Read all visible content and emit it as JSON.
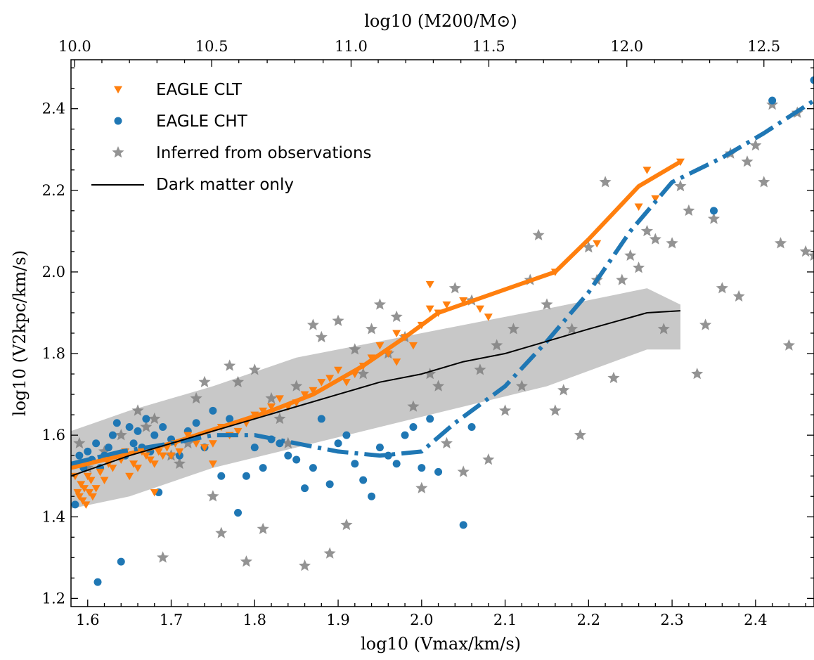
{
  "chart_data": {
    "type": "scatter",
    "title": "",
    "xlabel": "log10 (Vmax/km/s)",
    "ylabel": "log10 (V2kpc/km/s)",
    "top_xlabel": "log10 (M200/M⊙)",
    "xlim": [
      1.58,
      2.47
    ],
    "ylim": [
      1.18,
      2.52
    ],
    "x_ticks": [
      "1.6",
      "1.7",
      "1.8",
      "1.9",
      "2.0",
      "2.1",
      "2.2",
      "2.3",
      "2.4"
    ],
    "y_ticks": [
      "1.2",
      "1.4",
      "1.6",
      "1.8",
      "2.0",
      "2.2",
      "2.4"
    ],
    "top_axis": {
      "ticks": [
        "10.0",
        "10.5",
        "11.0",
        "11.5",
        "12.0",
        "12.5"
      ],
      "tick_positions_vmax": [
        1.5845,
        1.7485,
        1.9155,
        2.0805,
        2.2458,
        2.41
      ],
      "minor_tick_positions_vmax": [
        1.617,
        1.65,
        1.683,
        1.716,
        1.781,
        1.815,
        1.848,
        1.882,
        1.948,
        1.981,
        2.014,
        2.047,
        2.113,
        2.146,
        2.179,
        2.212,
        2.279,
        2.312,
        2.345,
        2.378,
        2.443
      ]
    },
    "grid": false,
    "legend_position": "top-left",
    "colors": {
      "clt": "#ff7f0e",
      "cht": "#1f77b4",
      "obs": "#808080",
      "dmo": "#000000",
      "band": "#c8c8c8"
    },
    "legend": [
      {
        "label": "EAGLE CLT",
        "marker": "triangle-down",
        "color": "#ff7f0e"
      },
      {
        "label": "EAGLE CHT",
        "marker": "circle",
        "color": "#1f77b4"
      },
      {
        "label": "Inferred from observations",
        "marker": "star",
        "color": "#808080"
      },
      {
        "label": "Dark matter only",
        "marker": "line",
        "color": "#000000"
      }
    ],
    "series": [
      {
        "name": "EAGLE CLT",
        "kind": "scatter",
        "marker": "triangle-down",
        "color": "#ff7f0e",
        "points": [
          [
            1.585,
            1.5
          ],
          [
            1.588,
            1.46
          ],
          [
            1.59,
            1.45
          ],
          [
            1.592,
            1.48
          ],
          [
            1.594,
            1.44
          ],
          [
            1.596,
            1.47
          ],
          [
            1.598,
            1.43
          ],
          [
            1.6,
            1.5
          ],
          [
            1.602,
            1.46
          ],
          [
            1.604,
            1.49
          ],
          [
            1.606,
            1.45
          ],
          [
            1.61,
            1.47
          ],
          [
            1.615,
            1.51
          ],
          [
            1.62,
            1.49
          ],
          [
            1.625,
            1.53
          ],
          [
            1.63,
            1.52
          ],
          [
            1.635,
            1.55
          ],
          [
            1.64,
            1.54
          ],
          [
            1.645,
            1.56
          ],
          [
            1.65,
            1.5
          ],
          [
            1.655,
            1.53
          ],
          [
            1.66,
            1.52
          ],
          [
            1.665,
            1.56
          ],
          [
            1.67,
            1.55
          ],
          [
            1.675,
            1.54
          ],
          [
            1.68,
            1.53
          ],
          [
            1.685,
            1.56
          ],
          [
            1.69,
            1.55
          ],
          [
            1.695,
            1.57
          ],
          [
            1.7,
            1.55
          ],
          [
            1.705,
            1.58
          ],
          [
            1.71,
            1.56
          ],
          [
            1.72,
            1.6
          ],
          [
            1.73,
            1.58
          ],
          [
            1.74,
            1.57
          ],
          [
            1.75,
            1.58
          ],
          [
            1.76,
            1.62
          ],
          [
            1.77,
            1.6
          ],
          [
            1.78,
            1.61
          ],
          [
            1.79,
            1.63
          ],
          [
            1.8,
            1.65
          ],
          [
            1.81,
            1.66
          ],
          [
            1.82,
            1.67
          ],
          [
            1.83,
            1.69
          ],
          [
            1.84,
            1.67
          ],
          [
            1.85,
            1.68
          ],
          [
            1.86,
            1.7
          ],
          [
            1.87,
            1.71
          ],
          [
            1.88,
            1.73
          ],
          [
            1.89,
            1.74
          ],
          [
            1.9,
            1.76
          ],
          [
            1.91,
            1.73
          ],
          [
            1.92,
            1.75
          ],
          [
            1.93,
            1.77
          ],
          [
            1.94,
            1.79
          ],
          [
            1.95,
            1.82
          ],
          [
            1.96,
            1.8
          ],
          [
            1.97,
            1.85
          ],
          [
            1.98,
            1.84
          ],
          [
            1.99,
            1.82
          ],
          [
            2.0,
            1.87
          ],
          [
            2.01,
            1.91
          ],
          [
            2.02,
            1.9
          ],
          [
            2.03,
            1.92
          ],
          [
            2.05,
            1.93
          ],
          [
            2.07,
            1.91
          ],
          [
            2.08,
            1.89
          ],
          [
            2.16,
            2.0
          ],
          [
            2.21,
            2.07
          ],
          [
            2.26,
            2.16
          ],
          [
            2.27,
            2.25
          ],
          [
            2.28,
            2.18
          ],
          [
            2.31,
            2.27
          ],
          [
            1.68,
            1.46
          ],
          [
            1.75,
            1.53
          ],
          [
            1.97,
            1.78
          ],
          [
            2.01,
            1.97
          ]
        ]
      },
      {
        "name": "EAGLE CHT",
        "kind": "scatter",
        "marker": "circle",
        "color": "#1f77b4",
        "points": [
          [
            1.585,
            1.43
          ],
          [
            1.59,
            1.55
          ],
          [
            1.595,
            1.52
          ],
          [
            1.6,
            1.56
          ],
          [
            1.605,
            1.54
          ],
          [
            1.61,
            1.58
          ],
          [
            1.612,
            1.24
          ],
          [
            1.615,
            1.52
          ],
          [
            1.62,
            1.55
          ],
          [
            1.625,
            1.57
          ],
          [
            1.63,
            1.6
          ],
          [
            1.635,
            1.63
          ],
          [
            1.64,
            1.29
          ],
          [
            1.645,
            1.55
          ],
          [
            1.65,
            1.62
          ],
          [
            1.655,
            1.58
          ],
          [
            1.66,
            1.61
          ],
          [
            1.665,
            1.57
          ],
          [
            1.67,
            1.64
          ],
          [
            1.675,
            1.56
          ],
          [
            1.68,
            1.6
          ],
          [
            1.685,
            1.46
          ],
          [
            1.69,
            1.62
          ],
          [
            1.7,
            1.59
          ],
          [
            1.71,
            1.55
          ],
          [
            1.72,
            1.61
          ],
          [
            1.73,
            1.63
          ],
          [
            1.74,
            1.57
          ],
          [
            1.75,
            1.66
          ],
          [
            1.76,
            1.5
          ],
          [
            1.77,
            1.64
          ],
          [
            1.78,
            1.41
          ],
          [
            1.79,
            1.5
          ],
          [
            1.8,
            1.57
          ],
          [
            1.81,
            1.52
          ],
          [
            1.82,
            1.59
          ],
          [
            1.83,
            1.58
          ],
          [
            1.84,
            1.55
          ],
          [
            1.85,
            1.54
          ],
          [
            1.86,
            1.47
          ],
          [
            1.87,
            1.52
          ],
          [
            1.88,
            1.64
          ],
          [
            1.89,
            1.48
          ],
          [
            1.9,
            1.58
          ],
          [
            1.91,
            1.6
          ],
          [
            1.92,
            1.53
          ],
          [
            1.93,
            1.49
          ],
          [
            1.94,
            1.45
          ],
          [
            1.95,
            1.57
          ],
          [
            1.96,
            1.55
          ],
          [
            1.97,
            1.53
          ],
          [
            1.98,
            1.6
          ],
          [
            1.99,
            1.62
          ],
          [
            2.0,
            1.52
          ],
          [
            2.01,
            1.64
          ],
          [
            2.02,
            1.51
          ],
          [
            2.05,
            1.38
          ],
          [
            2.06,
            1.62
          ],
          [
            2.35,
            2.15
          ],
          [
            2.42,
            2.42
          ],
          [
            2.47,
            2.47
          ]
        ]
      },
      {
        "name": "Inferred from observations",
        "kind": "scatter",
        "marker": "star",
        "color": "#808080",
        "points": [
          [
            1.59,
            1.58
          ],
          [
            1.6,
            1.52
          ],
          [
            1.62,
            1.56
          ],
          [
            1.64,
            1.6
          ],
          [
            1.66,
            1.66
          ],
          [
            1.67,
            1.62
          ],
          [
            1.68,
            1.64
          ],
          [
            1.69,
            1.3
          ],
          [
            1.7,
            1.55
          ],
          [
            1.71,
            1.53
          ],
          [
            1.72,
            1.58
          ],
          [
            1.73,
            1.69
          ],
          [
            1.74,
            1.73
          ],
          [
            1.75,
            1.45
          ],
          [
            1.76,
            1.36
          ],
          [
            1.77,
            1.77
          ],
          [
            1.78,
            1.73
          ],
          [
            1.79,
            1.29
          ],
          [
            1.8,
            1.76
          ],
          [
            1.81,
            1.37
          ],
          [
            1.82,
            1.69
          ],
          [
            1.83,
            1.64
          ],
          [
            1.84,
            1.58
          ],
          [
            1.85,
            1.72
          ],
          [
            1.86,
            1.28
          ],
          [
            1.87,
            1.87
          ],
          [
            1.88,
            1.84
          ],
          [
            1.89,
            1.31
          ],
          [
            1.9,
            1.88
          ],
          [
            1.91,
            1.38
          ],
          [
            1.92,
            1.81
          ],
          [
            1.93,
            1.75
          ],
          [
            1.94,
            1.86
          ],
          [
            1.95,
            1.92
          ],
          [
            1.96,
            1.8
          ],
          [
            1.97,
            1.89
          ],
          [
            1.98,
            1.84
          ],
          [
            1.99,
            1.67
          ],
          [
            2.0,
            1.47
          ],
          [
            2.01,
            1.75
          ],
          [
            2.02,
            1.72
          ],
          [
            2.03,
            1.58
          ],
          [
            2.04,
            1.96
          ],
          [
            2.05,
            1.51
          ],
          [
            2.06,
            1.93
          ],
          [
            2.07,
            1.76
          ],
          [
            2.08,
            1.54
          ],
          [
            2.09,
            1.82
          ],
          [
            2.1,
            1.66
          ],
          [
            2.11,
            1.86
          ],
          [
            2.12,
            1.72
          ],
          [
            2.13,
            1.98
          ],
          [
            2.14,
            2.09
          ],
          [
            2.15,
            1.92
          ],
          [
            2.16,
            1.66
          ],
          [
            2.17,
            1.71
          ],
          [
            2.18,
            1.86
          ],
          [
            2.19,
            1.6
          ],
          [
            2.2,
            2.06
          ],
          [
            2.21,
            1.98
          ],
          [
            2.22,
            2.22
          ],
          [
            2.23,
            1.74
          ],
          [
            2.24,
            1.98
          ],
          [
            2.25,
            2.04
          ],
          [
            2.26,
            2.01
          ],
          [
            2.27,
            2.1
          ],
          [
            2.28,
            2.08
          ],
          [
            2.29,
            1.86
          ],
          [
            2.3,
            2.07
          ],
          [
            2.31,
            2.21
          ],
          [
            2.32,
            2.15
          ],
          [
            2.33,
            1.75
          ],
          [
            2.34,
            1.87
          ],
          [
            2.35,
            2.13
          ],
          [
            2.36,
            1.96
          ],
          [
            2.37,
            2.29
          ],
          [
            2.38,
            1.94
          ],
          [
            2.39,
            2.27
          ],
          [
            2.4,
            2.31
          ],
          [
            2.41,
            2.22
          ],
          [
            2.42,
            2.41
          ],
          [
            2.43,
            2.07
          ],
          [
            2.44,
            1.82
          ],
          [
            2.45,
            2.39
          ],
          [
            2.46,
            2.05
          ],
          [
            2.47,
            2.04
          ]
        ]
      },
      {
        "name": "EAGLE CLT median",
        "kind": "line",
        "color": "#ff7f0e",
        "x": [
          1.58,
          1.64,
          1.7,
          1.76,
          1.82,
          1.87,
          1.93,
          1.98,
          2.02,
          2.09,
          2.16,
          2.2,
          2.26,
          2.31
        ],
        "y": [
          1.52,
          1.55,
          1.58,
          1.62,
          1.66,
          1.7,
          1.77,
          1.84,
          1.9,
          1.95,
          2.0,
          2.08,
          2.21,
          2.27
        ]
      },
      {
        "name": "EAGLE CHT median",
        "kind": "line",
        "color": "#1f77b4",
        "x": [
          1.58,
          1.64,
          1.7,
          1.75,
          1.8,
          1.85,
          1.9,
          1.95,
          2.0,
          2.04,
          2.1,
          2.15,
          2.2,
          2.25,
          2.3,
          2.36,
          2.41,
          2.47
        ],
        "y": [
          1.53,
          1.56,
          1.58,
          1.6,
          1.6,
          1.58,
          1.56,
          1.55,
          1.56,
          1.63,
          1.72,
          1.83,
          1.95,
          2.1,
          2.22,
          2.28,
          2.34,
          2.42
        ]
      },
      {
        "name": "Dark matter only",
        "kind": "line",
        "color": "#000000",
        "x": [
          1.58,
          1.65,
          1.7,
          1.75,
          1.8,
          1.85,
          1.9,
          1.95,
          2.0,
          2.05,
          2.1,
          2.15,
          2.2,
          2.27,
          2.31
        ],
        "y": [
          1.5,
          1.55,
          1.58,
          1.61,
          1.64,
          1.67,
          1.7,
          1.73,
          1.75,
          1.78,
          1.8,
          1.83,
          1.86,
          1.9,
          1.905
        ]
      },
      {
        "name": "Dark matter only scatter band",
        "kind": "band",
        "color": "#c8c8c8",
        "x": [
          1.58,
          1.65,
          1.75,
          1.85,
          1.95,
          2.05,
          2.15,
          2.27,
          2.31
        ],
        "y_low": [
          1.42,
          1.45,
          1.52,
          1.57,
          1.62,
          1.67,
          1.72,
          1.81,
          1.81
        ],
        "y_high": [
          1.61,
          1.66,
          1.72,
          1.79,
          1.83,
          1.87,
          1.91,
          1.96,
          1.92
        ]
      }
    ]
  }
}
